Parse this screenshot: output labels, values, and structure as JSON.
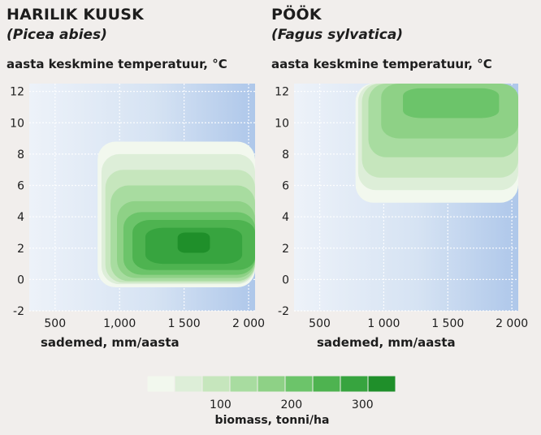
{
  "palette": [
    "#f2f8ee",
    "#ddeed8",
    "#c6e6bd",
    "#a8dca0",
    "#8ed186",
    "#6cc46a",
    "#4eb350",
    "#37a43f",
    "#1f8f2a"
  ],
  "chart_data": [
    {
      "type": "heatmap",
      "title": "HARILIK KUUSK",
      "subtitle": "(Picea abies)",
      "ylabel": "aasta keskmine temperatuur, °C",
      "xlabel": "sademed, mm/aasta",
      "xticks": [
        500,
        1000,
        1500,
        2000
      ],
      "xtick_labels": [
        "500",
        "1,000",
        "1 500",
        "2 000"
      ],
      "yticks": [
        -2,
        0,
        2,
        4,
        6,
        8,
        10,
        12
      ],
      "xlim": [
        300,
        2050
      ],
      "ylim": [
        -2,
        12.5
      ],
      "grid": true,
      "regions": [
        {
          "level": 0,
          "biomass": 0,
          "x_range": [
            830,
            2050
          ],
          "y_range": [
            -0.5,
            8.8
          ]
        },
        {
          "level": 1,
          "biomass": 50,
          "x_range": [
            860,
            2050
          ],
          "y_range": [
            -0.3,
            8
          ]
        },
        {
          "level": 2,
          "biomass": 80,
          "x_range": [
            890,
            2050
          ],
          "y_range": [
            -0.2,
            7
          ]
        },
        {
          "level": 3,
          "biomass": 120,
          "x_range": [
            930,
            2050
          ],
          "y_range": [
            -0.1,
            6
          ]
        },
        {
          "level": 4,
          "biomass": 160,
          "x_range": [
            980,
            2050
          ],
          "y_range": [
            0.1,
            5
          ]
        },
        {
          "level": 5,
          "biomass": 200,
          "x_range": [
            1030,
            2050
          ],
          "y_range": [
            0.3,
            4.3
          ]
        },
        {
          "level": 6,
          "biomass": 240,
          "x_range": [
            1100,
            2050
          ],
          "y_range": [
            0.6,
            3.8
          ]
        },
        {
          "level": 7,
          "biomass": 280,
          "x_range": [
            1200,
            1950
          ],
          "y_range": [
            1.0,
            3.3
          ]
        },
        {
          "level": 8,
          "biomass": 310,
          "x_range": [
            1450,
            1700
          ],
          "y_range": [
            1.7,
            3.0
          ]
        }
      ]
    },
    {
      "type": "heatmap",
      "title": "PÖÖK",
      "subtitle": "(Fagus sylvatica)",
      "ylabel": "aasta keskmine temperatuur, °C",
      "xlabel": "sademed, mm/aasta",
      "xticks": [
        500,
        1000,
        1500,
        2000
      ],
      "xtick_labels": [
        "500",
        "1 000",
        "1 500",
        "2 000"
      ],
      "yticks": [
        -2,
        0,
        2,
        4,
        6,
        8,
        10,
        12
      ],
      "xlim": [
        300,
        2050
      ],
      "ylim": [
        -2,
        12.5
      ],
      "grid": true,
      "regions": [
        {
          "level": 0,
          "biomass": 0,
          "x_range": [
            780,
            2050
          ],
          "y_range": [
            4.9,
            12.5
          ]
        },
        {
          "level": 1,
          "biomass": 50,
          "x_range": [
            800,
            2050
          ],
          "y_range": [
            5.7,
            12.5
          ]
        },
        {
          "level": 2,
          "biomass": 80,
          "x_range": [
            830,
            2050
          ],
          "y_range": [
            6.5,
            12.5
          ]
        },
        {
          "level": 3,
          "biomass": 120,
          "x_range": [
            880,
            2050
          ],
          "y_range": [
            7.8,
            12.5
          ]
        },
        {
          "level": 4,
          "biomass": 160,
          "x_range": [
            980,
            2050
          ],
          "y_range": [
            9.0,
            12.5
          ]
        },
        {
          "level": 5,
          "biomass": 190,
          "x_range": [
            1150,
            1900
          ],
          "y_range": [
            10.3,
            12.2
          ]
        }
      ]
    }
  ],
  "legend": {
    "levels": 9,
    "tick_labels": [
      "100",
      "200",
      "300"
    ],
    "tick_values": [
      100,
      200,
      300
    ],
    "title": "biomass, tonni/ha"
  }
}
